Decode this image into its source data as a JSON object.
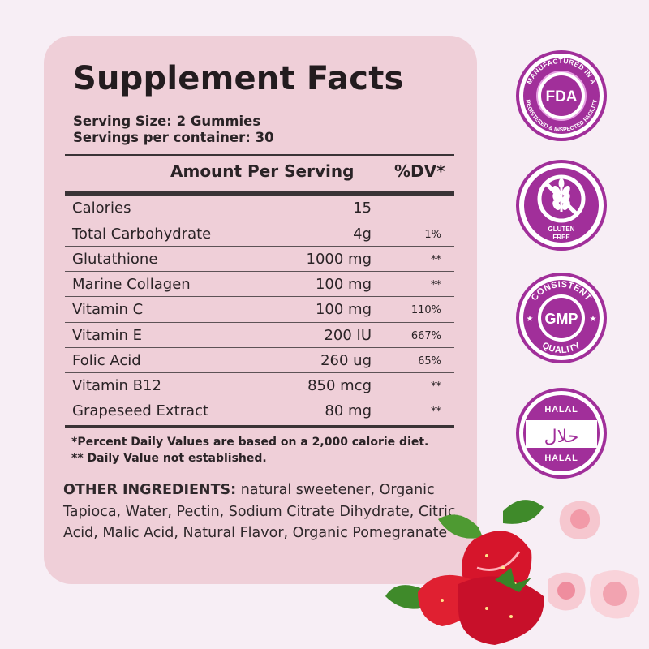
{
  "facts": {
    "title": "Supplement Facts",
    "serving_size": "Serving Size: 2 Gummies",
    "servings_per_container": "Servings per container: 30",
    "header_amount": "Amount Per Serving",
    "header_dv": "%DV*",
    "rows": [
      {
        "name": "Calories",
        "amount": "15",
        "dv": ""
      },
      {
        "name": "Total Carbohydrate",
        "amount": "4g",
        "dv": "1%"
      },
      {
        "name": "Glutathione",
        "amount": "1000 mg",
        "dv": "**"
      },
      {
        "name": "Marine Collagen",
        "amount": "100 mg",
        "dv": "**"
      },
      {
        "name": "Vitamin C",
        "amount": "100 mg",
        "dv": "110%"
      },
      {
        "name": "Vitamin E",
        "amount": "200 IU",
        "dv": "667%"
      },
      {
        "name": "Folic Acid",
        "amount": "260 ug",
        "dv": "65%"
      },
      {
        "name": "Vitamin B12",
        "amount": "850 mcg",
        "dv": "**"
      },
      {
        "name": "Grapeseed Extract",
        "amount": "80 mg",
        "dv": "**"
      }
    ],
    "footnote_1": "*Percent Daily Values are based on a 2,000 calorie diet.",
    "footnote_2": "** Daily Value not established.",
    "other_label": "OTHER INGREDIENTS:",
    "other_text": " natural sweetener, Organic Tapioca, Water, Pectin, Sodium Citrate Dihydrate, Citric Acid, Malic Acid, Natural Flavor, Organic Pomegranate"
  },
  "badges": {
    "fda": {
      "center": "FDA",
      "ring_top": "MANUFACTURED IN A",
      "ring_bottom": "REGISTERED & INSPECTED FACILITY"
    },
    "gluten": {
      "line1": "GLUTEN",
      "line2": "FREE"
    },
    "gmp": {
      "center": "GMP",
      "ring_top": "CONSISTENT",
      "ring_bottom": "QUALITY"
    },
    "halal": {
      "top": "HALAL",
      "bottom": "HALAL",
      "arabic": "حلال"
    }
  },
  "colors": {
    "panel": "#efcfd8",
    "background": "#f7eef5",
    "badge_purple": "#a12f9a",
    "badge_light": "#e69de2"
  }
}
